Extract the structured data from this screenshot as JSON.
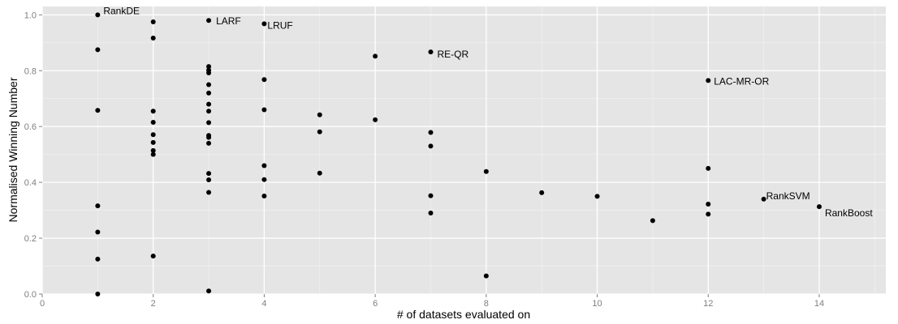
{
  "chart_data": {
    "type": "scatter",
    "title": "",
    "xlabel": "# of datasets evaluated on",
    "ylabel": "Normalised Winning Number",
    "xlim": [
      0,
      15.2
    ],
    "ylim": [
      0,
      1.03
    ],
    "x_ticks": [
      0,
      2,
      4,
      6,
      8,
      10,
      12,
      14
    ],
    "x_tick_labels": [
      "0",
      "2",
      "4",
      "6",
      "8",
      "10",
      "12",
      "14"
    ],
    "y_ticks": [
      0.0,
      0.2,
      0.4,
      0.6,
      0.8,
      1.0
    ],
    "y_tick_labels": [
      "0.0",
      "0.2",
      "0.4",
      "0.6",
      "0.8",
      "1.0"
    ],
    "grid": true,
    "colors": {
      "panel": "#e5e5e5",
      "grid_major": "#ffffff",
      "grid_minor": "#f2f2f2",
      "point": "#000000",
      "tick_label": "#7f7f7f"
    },
    "points": [
      {
        "x": 1,
        "y": 1.0,
        "label": "RankDE"
      },
      {
        "x": 1,
        "y": 0.875
      },
      {
        "x": 1,
        "y": 0.658
      },
      {
        "x": 1,
        "y": 0.316
      },
      {
        "x": 1,
        "y": 0.222
      },
      {
        "x": 1,
        "y": 0.125
      },
      {
        "x": 1,
        "y": 0.0
      },
      {
        "x": 2,
        "y": 0.975
      },
      {
        "x": 2,
        "y": 0.917
      },
      {
        "x": 2,
        "y": 0.655
      },
      {
        "x": 2,
        "y": 0.615
      },
      {
        "x": 2,
        "y": 0.571
      },
      {
        "x": 2,
        "y": 0.543
      },
      {
        "x": 2,
        "y": 0.514
      },
      {
        "x": 2,
        "y": 0.5
      },
      {
        "x": 2,
        "y": 0.136
      },
      {
        "x": 3,
        "y": 0.98,
        "label": "LARF"
      },
      {
        "x": 3,
        "y": 0.815
      },
      {
        "x": 3,
        "y": 0.802
      },
      {
        "x": 3,
        "y": 0.792
      },
      {
        "x": 3,
        "y": 0.75
      },
      {
        "x": 3,
        "y": 0.72
      },
      {
        "x": 3,
        "y": 0.68
      },
      {
        "x": 3,
        "y": 0.655
      },
      {
        "x": 3,
        "y": 0.614
      },
      {
        "x": 3,
        "y": 0.568
      },
      {
        "x": 3,
        "y": 0.561
      },
      {
        "x": 3,
        "y": 0.54
      },
      {
        "x": 3,
        "y": 0.432
      },
      {
        "x": 3,
        "y": 0.409
      },
      {
        "x": 3,
        "y": 0.364
      },
      {
        "x": 3,
        "y": 0.011
      },
      {
        "x": 4,
        "y": 0.968,
        "label": "LRUF"
      },
      {
        "x": 4,
        "y": 0.768
      },
      {
        "x": 4,
        "y": 0.66
      },
      {
        "x": 4,
        "y": 0.46
      },
      {
        "x": 4,
        "y": 0.41
      },
      {
        "x": 4,
        "y": 0.351
      },
      {
        "x": 5,
        "y": 0.642
      },
      {
        "x": 5,
        "y": 0.581
      },
      {
        "x": 5,
        "y": 0.433
      },
      {
        "x": 6,
        "y": 0.852
      },
      {
        "x": 6,
        "y": 0.624
      },
      {
        "x": 7,
        "y": 0.867,
        "label": "RE-QR"
      },
      {
        "x": 7,
        "y": 0.579
      },
      {
        "x": 7,
        "y": 0.53
      },
      {
        "x": 7,
        "y": 0.352
      },
      {
        "x": 7,
        "y": 0.29
      },
      {
        "x": 8,
        "y": 0.439
      },
      {
        "x": 8,
        "y": 0.065
      },
      {
        "x": 9,
        "y": 0.363
      },
      {
        "x": 10,
        "y": 0.35
      },
      {
        "x": 11,
        "y": 0.263
      },
      {
        "x": 12,
        "y": 0.765,
        "label": "LAC-MR-OR"
      },
      {
        "x": 12,
        "y": 0.45
      },
      {
        "x": 12,
        "y": 0.322
      },
      {
        "x": 12,
        "y": 0.286
      },
      {
        "x": 13,
        "y": 0.34,
        "label": "RankSVM"
      },
      {
        "x": 14,
        "y": 0.313,
        "label": "RankBoost"
      }
    ]
  }
}
